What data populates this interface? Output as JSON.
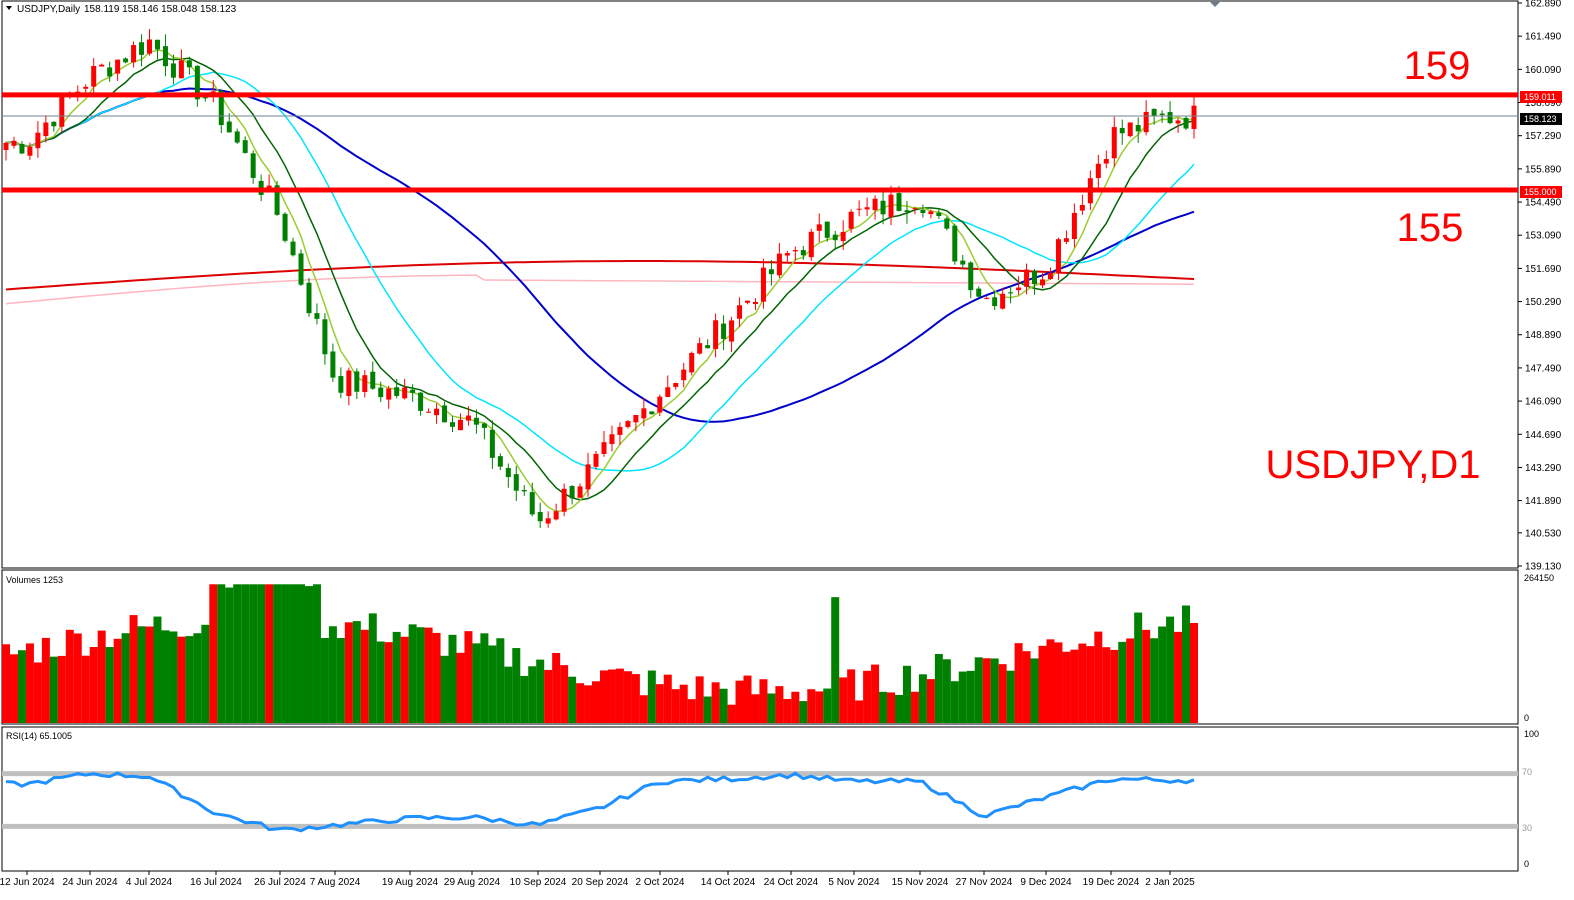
{
  "header": {
    "symbol_line": "USDJPY,Daily",
    "ohlc": "158.119 158.146 158.048 158.123"
  },
  "volume_panel": {
    "label": "Volumes 1253",
    "top_label": "264150",
    "bottom_label": "0"
  },
  "rsi_panel": {
    "label": "RSI(14) 65.1005",
    "level_100": "100",
    "level_70": "70",
    "level_30": "30",
    "level_0": "0"
  },
  "annotations": {
    "level_high": "159",
    "level_low": "155",
    "title": "USDJPY,D1",
    "level_high_tag": "159.011",
    "level_low_tag": "155.000",
    "current_price_tag": "158.123"
  },
  "colors": {
    "bull": "#ff0000",
    "bear": "#008000",
    "ma_fast": "#9acd32",
    "ma_10": "#006400",
    "ma_cyan": "#00e5ff",
    "ma_blue": "#0000cd",
    "ma_pink": "#ffb6c1",
    "ma_red": "#dd0000",
    "level_line": "#ff0000",
    "rsi_line": "#1e90ff"
  },
  "chart_data": {
    "type": "candlestick",
    "symbol": "USDJPY",
    "timeframe": "Daily",
    "price_axis_ticks": [
      "162.890",
      "161.490",
      "160.090",
      "158.690",
      "157.290",
      "155.890",
      "154.490",
      "153.090",
      "151.690",
      "150.290",
      "148.890",
      "147.490",
      "146.090",
      "144.690",
      "143.290",
      "141.890",
      "140.530",
      "139.130"
    ],
    "ylim": [
      139.13,
      162.89
    ],
    "date_ticks": [
      "12 Jun 2024",
      "24 Jun 2024",
      "4 Jul 2024",
      "16 Jul 2024",
      "26 Jul 2024",
      "7 Aug 2024",
      "19 Aug 2024",
      "29 Aug 2024",
      "10 Sep 2024",
      "20 Sep 2024",
      "2 Oct 2024",
      "14 Oct 2024",
      "24 Oct 2024",
      "5 Nov 2024",
      "15 Nov 2024",
      "27 Nov 2024",
      "9 Dec 2024",
      "19 Dec 2024",
      "2 Jan 2025"
    ],
    "horizontal_levels": [
      159.011,
      155.0
    ],
    "current_price": 158.123,
    "price_path_keypoints": [
      {
        "x": "12 Jun 2024",
        "y": 157.0
      },
      {
        "x": "24 Jun 2024",
        "y": 159.8
      },
      {
        "x": "4 Jul 2024",
        "y": 161.3
      },
      {
        "x": "16 Jul 2024",
        "y": 158.5
      },
      {
        "x": "26 Jul 2024",
        "y": 153.8
      },
      {
        "x": "7 Aug 2024",
        "y": 147.0
      },
      {
        "x": "19 Aug 2024",
        "y": 146.3
      },
      {
        "x": "29 Aug 2024",
        "y": 145.2
      },
      {
        "x": "10 Sep 2024",
        "y": 141.0
      },
      {
        "x": "20 Sep 2024",
        "y": 143.6
      },
      {
        "x": "2 Oct 2024",
        "y": 146.5
      },
      {
        "x": "14 Oct 2024",
        "y": 149.5
      },
      {
        "x": "24 Oct 2024",
        "y": 152.4
      },
      {
        "x": "5 Nov 2024",
        "y": 153.9
      },
      {
        "x": "15 Nov 2024",
        "y": 154.8
      },
      {
        "x": "27 Nov 2024",
        "y": 150.4
      },
      {
        "x": "9 Dec 2024",
        "y": 151.7
      },
      {
        "x": "19 Dec 2024",
        "y": 157.3
      },
      {
        "x": "2 Jan 2025",
        "y": 158.1
      }
    ],
    "rsi_path_keypoints": [
      {
        "x": "12 Jun 2024",
        "y": 62
      },
      {
        "x": "24 Jun 2024",
        "y": 70
      },
      {
        "x": "4 Jul 2024",
        "y": 68
      },
      {
        "x": "16 Jul 2024",
        "y": 40
      },
      {
        "x": "26 Jul 2024",
        "y": 27
      },
      {
        "x": "7 Aug 2024",
        "y": 31
      },
      {
        "x": "19 Aug 2024",
        "y": 36
      },
      {
        "x": "29 Aug 2024",
        "y": 37
      },
      {
        "x": "10 Sep 2024",
        "y": 31
      },
      {
        "x": "20 Sep 2024",
        "y": 44
      },
      {
        "x": "2 Oct 2024",
        "y": 64
      },
      {
        "x": "14 Oct 2024",
        "y": 66
      },
      {
        "x": "24 Oct 2024",
        "y": 69
      },
      {
        "x": "5 Nov 2024",
        "y": 64
      },
      {
        "x": "15 Nov 2024",
        "y": 64
      },
      {
        "x": "27 Nov 2024",
        "y": 38
      },
      {
        "x": "9 Dec 2024",
        "y": 52
      },
      {
        "x": "19 Dec 2024",
        "y": 66
      },
      {
        "x": "2 Jan 2025",
        "y": 65
      }
    ],
    "rsi_levels": [
      70,
      30
    ],
    "rsi_range": [
      0,
      100
    ],
    "volume_range": [
      0,
      264150
    ]
  }
}
